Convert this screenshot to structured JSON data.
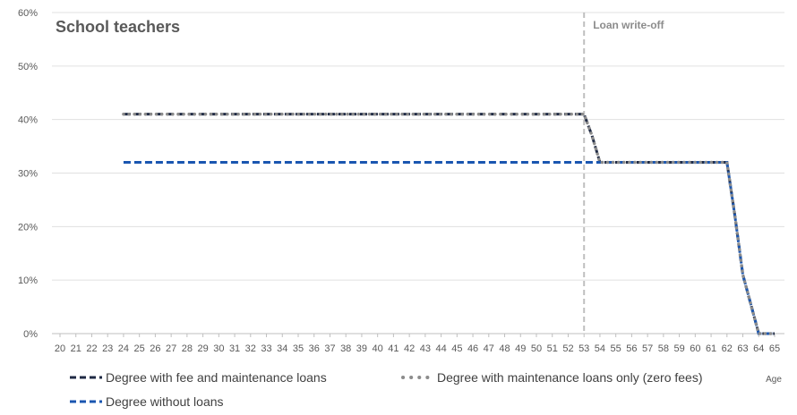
{
  "chart_data": {
    "type": "line",
    "title": "School teachers",
    "xlabel": "Age",
    "ylabel": "",
    "xlim": [
      20,
      65
    ],
    "ylim": [
      0,
      60
    ],
    "y_ticks": [
      "0%",
      "10%",
      "20%",
      "30%",
      "40%",
      "50%",
      "60%"
    ],
    "x_ticks": [
      "20",
      "21",
      "22",
      "23",
      "24",
      "25",
      "26",
      "27",
      "28",
      "29",
      "30",
      "31",
      "32",
      "33",
      "34",
      "35",
      "36",
      "37",
      "38",
      "39",
      "40",
      "41",
      "42",
      "43",
      "44",
      "45",
      "46",
      "47",
      "48",
      "49",
      "50",
      "51",
      "52",
      "53",
      "54",
      "55",
      "56",
      "57",
      "58",
      "59",
      "60",
      "61",
      "62",
      "63",
      "64",
      "65"
    ],
    "grid": "horizontal",
    "legend": "bottom",
    "annotation": {
      "label": "Loan write-off",
      "x": 53
    },
    "series": [
      {
        "name": "Degree with fee and maintenance loans",
        "color": "#1f2a44",
        "style": "dash",
        "points": [
          [
            24,
            41
          ],
          [
            53,
            41
          ],
          [
            53.5,
            37
          ],
          [
            54,
            32
          ],
          [
            62,
            32
          ],
          [
            62.5,
            22
          ],
          [
            63,
            11
          ],
          [
            64,
            0
          ],
          [
            65,
            0
          ]
        ]
      },
      {
        "name": "Degree with maintenance loans only (zero fees)",
        "color": "#8c8c8c",
        "style": "dot",
        "points": [
          [
            24,
            41
          ],
          [
            53,
            41
          ],
          [
            53.5,
            37
          ],
          [
            54,
            32
          ],
          [
            62,
            32
          ],
          [
            62.5,
            22
          ],
          [
            63,
            11
          ],
          [
            64,
            0
          ],
          [
            65,
            0
          ]
        ]
      },
      {
        "name": "Degree without loans",
        "color": "#1a56b0",
        "style": "dash",
        "points": [
          [
            24,
            32
          ],
          [
            53,
            32
          ],
          [
            54,
            32
          ],
          [
            62,
            32
          ],
          [
            62.5,
            22
          ],
          [
            63,
            11
          ],
          [
            64,
            0
          ],
          [
            65,
            0
          ]
        ]
      }
    ]
  }
}
